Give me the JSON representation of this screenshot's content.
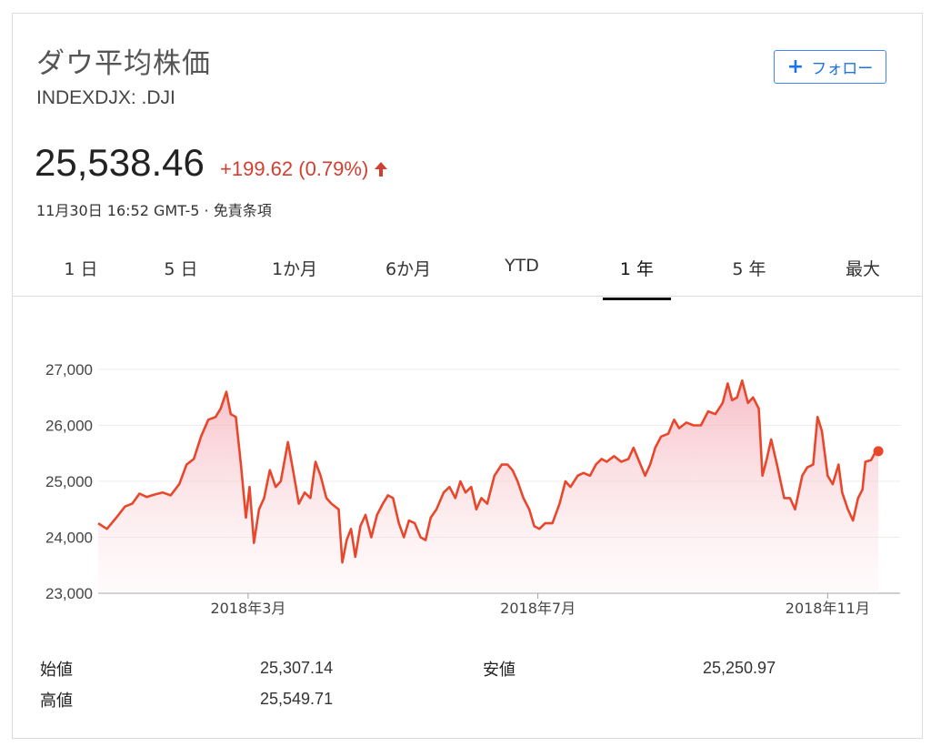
{
  "header": {
    "title": "ダウ平均株価",
    "ticker": "INDEXDJX: .DJI",
    "follow_label": "フォロー"
  },
  "quote": {
    "price": "25,538.46",
    "change": "+199.62 (0.79%)",
    "timestamp": "11月30日 16:52 GMT-5 · ",
    "disclaimer": "免責条項",
    "up_color": "#d23f31"
  },
  "tabs": [
    {
      "label": "1 日",
      "active": false
    },
    {
      "label": "5 日",
      "active": false
    },
    {
      "label": "1か月",
      "active": false
    },
    {
      "label": "6か月",
      "active": false
    },
    {
      "label": "YTD",
      "active": false
    },
    {
      "label": "1 年",
      "active": true
    },
    {
      "label": "5 年",
      "active": false
    },
    {
      "label": "最大",
      "active": false
    }
  ],
  "stats": {
    "open_label": "始値",
    "open_value": "25,307.14",
    "high_label": "高値",
    "high_value": "25,549.71",
    "low_label": "安値",
    "low_value": "25,250.97"
  },
  "chart_data": {
    "type": "area",
    "ylim": [
      23000,
      27000
    ],
    "yticks": [
      27000,
      26000,
      25000,
      24000,
      23000
    ],
    "ytick_labels": [
      "27,000",
      "26,000",
      "25,000",
      "24,000",
      "23,000"
    ],
    "xticks": [
      {
        "label": "2018年3月",
        "month_index": 3.0
      },
      {
        "label": "2018年7月",
        "month_index": 7.0
      },
      {
        "label": "2018年11月",
        "month_index": 11.0
      }
    ],
    "xlim_month_index": [
      0.93,
      12.0
    ],
    "line_color": "#e8472b",
    "fill_color": "#f7c6cc",
    "grid": true,
    "series": [
      {
        "values": [
          [
            0.93,
            24250
          ],
          [
            1.05,
            24150
          ],
          [
            1.18,
            24350
          ],
          [
            1.3,
            24550
          ],
          [
            1.4,
            24600
          ],
          [
            1.5,
            24780
          ],
          [
            1.6,
            24720
          ],
          [
            1.7,
            24760
          ],
          [
            1.82,
            24800
          ],
          [
            1.93,
            24750
          ],
          [
            2.05,
            24950
          ],
          [
            2.15,
            25300
          ],
          [
            2.25,
            25400
          ],
          [
            2.35,
            25800
          ],
          [
            2.45,
            26100
          ],
          [
            2.55,
            26150
          ],
          [
            2.62,
            26300
          ],
          [
            2.7,
            26600
          ],
          [
            2.76,
            26200
          ],
          [
            2.83,
            26150
          ],
          [
            2.9,
            25300
          ],
          [
            2.97,
            24350
          ],
          [
            3.02,
            24900
          ],
          [
            3.08,
            23900
          ],
          [
            3.15,
            24500
          ],
          [
            3.22,
            24700
          ],
          [
            3.3,
            25200
          ],
          [
            3.38,
            24900
          ],
          [
            3.45,
            25000
          ],
          [
            3.55,
            25700
          ],
          [
            3.62,
            25200
          ],
          [
            3.7,
            24600
          ],
          [
            3.78,
            24800
          ],
          [
            3.86,
            24700
          ],
          [
            3.93,
            25350
          ],
          [
            4.0,
            25100
          ],
          [
            4.08,
            24700
          ],
          [
            4.15,
            24600
          ],
          [
            4.25,
            24500
          ],
          [
            4.3,
            23550
          ],
          [
            4.36,
            23950
          ],
          [
            4.42,
            24150
          ],
          [
            4.48,
            23650
          ],
          [
            4.55,
            24200
          ],
          [
            4.62,
            24400
          ],
          [
            4.7,
            24000
          ],
          [
            4.78,
            24400
          ],
          [
            4.86,
            24600
          ],
          [
            4.93,
            24750
          ],
          [
            5.0,
            24700
          ],
          [
            5.08,
            24250
          ],
          [
            5.15,
            24000
          ],
          [
            5.22,
            24300
          ],
          [
            5.3,
            24250
          ],
          [
            5.38,
            24000
          ],
          [
            5.45,
            23950
          ],
          [
            5.52,
            24350
          ],
          [
            5.6,
            24500
          ],
          [
            5.7,
            24800
          ],
          [
            5.78,
            24900
          ],
          [
            5.86,
            24700
          ],
          [
            5.93,
            25000
          ],
          [
            6.0,
            24800
          ],
          [
            6.08,
            24900
          ],
          [
            6.15,
            24500
          ],
          [
            6.22,
            24700
          ],
          [
            6.3,
            24600
          ],
          [
            6.4,
            25100
          ],
          [
            6.5,
            25300
          ],
          [
            6.58,
            25300
          ],
          [
            6.65,
            25200
          ],
          [
            6.72,
            25000
          ],
          [
            6.8,
            24700
          ],
          [
            6.88,
            24500
          ],
          [
            6.95,
            24200
          ],
          [
            7.02,
            24150
          ],
          [
            7.1,
            24250
          ],
          [
            7.2,
            24250
          ],
          [
            7.3,
            24600
          ],
          [
            7.38,
            25000
          ],
          [
            7.45,
            24900
          ],
          [
            7.55,
            25100
          ],
          [
            7.63,
            25150
          ],
          [
            7.72,
            25100
          ],
          [
            7.8,
            25300
          ],
          [
            7.88,
            25400
          ],
          [
            7.95,
            25350
          ],
          [
            8.05,
            25450
          ],
          [
            8.15,
            25350
          ],
          [
            8.25,
            25400
          ],
          [
            8.32,
            25600
          ],
          [
            8.4,
            25350
          ],
          [
            8.48,
            25100
          ],
          [
            8.55,
            25300
          ],
          [
            8.62,
            25600
          ],
          [
            8.7,
            25800
          ],
          [
            8.8,
            25850
          ],
          [
            8.88,
            26100
          ],
          [
            8.95,
            25950
          ],
          [
            9.05,
            26050
          ],
          [
            9.15,
            26000
          ],
          [
            9.25,
            26000
          ],
          [
            9.35,
            26250
          ],
          [
            9.45,
            26200
          ],
          [
            9.55,
            26400
          ],
          [
            9.62,
            26750
          ],
          [
            9.68,
            26450
          ],
          [
            9.75,
            26500
          ],
          [
            9.82,
            26800
          ],
          [
            9.9,
            26400
          ],
          [
            9.97,
            26500
          ],
          [
            10.05,
            26300
          ],
          [
            10.1,
            25100
          ],
          [
            10.16,
            25400
          ],
          [
            10.22,
            25750
          ],
          [
            10.3,
            25300
          ],
          [
            10.4,
            24700
          ],
          [
            10.48,
            24700
          ],
          [
            10.55,
            24500
          ],
          [
            10.65,
            25100
          ],
          [
            10.72,
            25250
          ],
          [
            10.8,
            25300
          ],
          [
            10.86,
            26150
          ],
          [
            10.92,
            25900
          ],
          [
            11.0,
            25100
          ],
          [
            11.07,
            24950
          ],
          [
            11.15,
            25300
          ],
          [
            11.2,
            24800
          ],
          [
            11.28,
            24500
          ],
          [
            11.35,
            24300
          ],
          [
            11.42,
            24700
          ],
          [
            11.48,
            24850
          ],
          [
            11.52,
            25350
          ],
          [
            11.6,
            25380
          ],
          [
            11.65,
            25500
          ],
          [
            11.7,
            25538
          ]
        ]
      }
    ]
  }
}
